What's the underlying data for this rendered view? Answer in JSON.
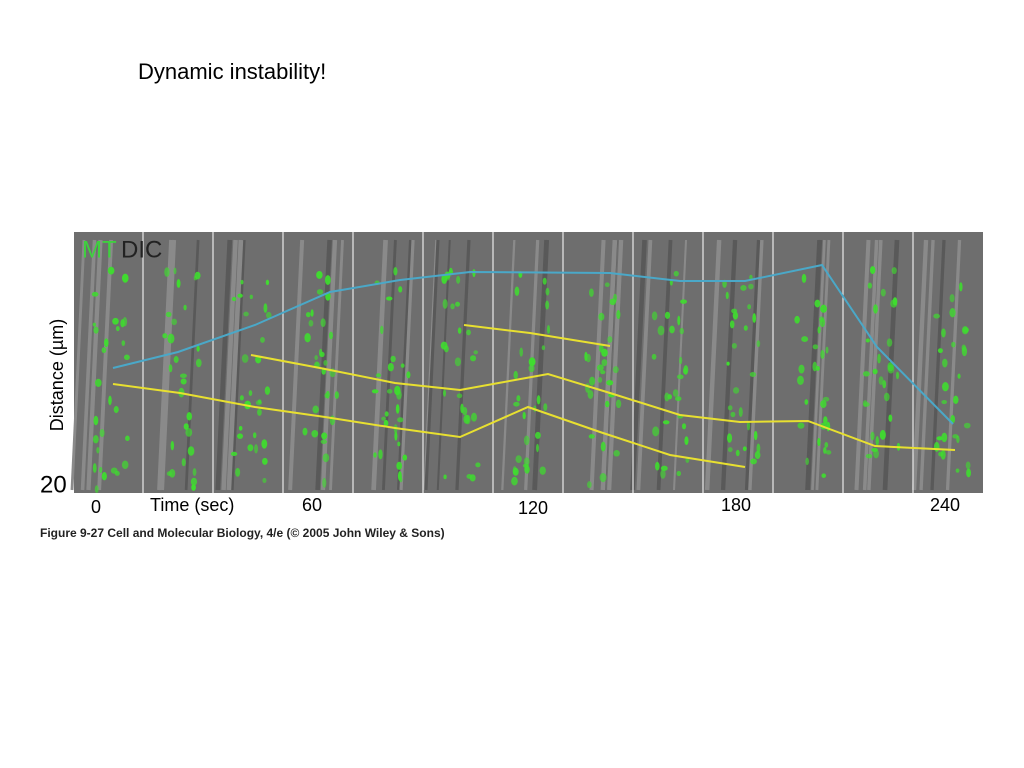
{
  "slide": {
    "title": "Dynamic instability!"
  },
  "figure": {
    "label_mt": "MT",
    "label_dic": "DIC",
    "y_axis_label": "Distance (µm)",
    "scale_value": "20",
    "x_axis_label": "Time (sec)",
    "time_labels": [
      "0",
      "60",
      "120",
      "180",
      "240"
    ],
    "caption": "Figure 9-27  Cell and Molecular Biology, 4/e (© 2005 John Wiley & Sons)"
  }
}
